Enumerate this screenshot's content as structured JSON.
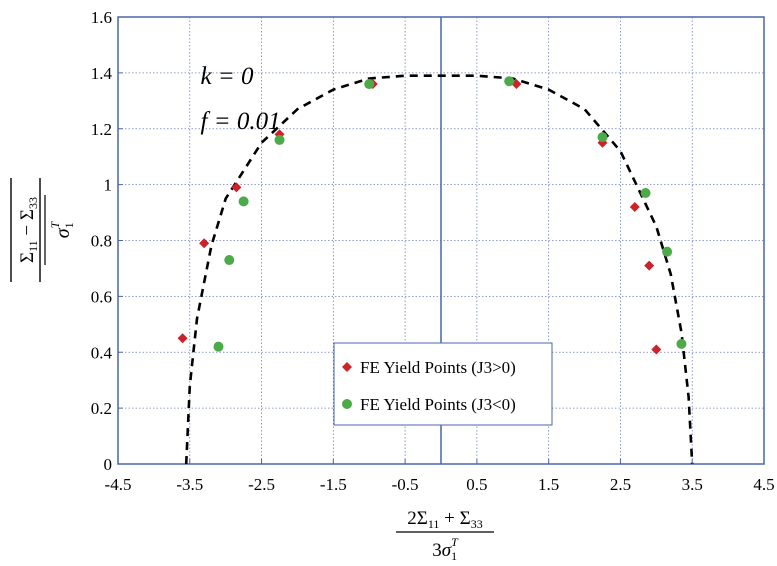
{
  "chart_data": {
    "type": "scatter",
    "x_ticks": [
      "-4.5",
      "-3.5",
      "-2.5",
      "-1.5",
      "-0.5",
      "0.5",
      "1.5",
      "2.5",
      "3.5",
      "4.5"
    ],
    "y_ticks": [
      "0",
      "0.2",
      "0.4",
      "0.6",
      "0.8",
      "1",
      "1.2",
      "1.4",
      "1.6"
    ],
    "xlim": [
      -4.5,
      4.5
    ],
    "ylim": [
      0,
      1.6
    ],
    "grid": true,
    "legend_position": "bottom-center",
    "annotations": [
      {
        "text": "k = 0",
        "x": -3.35,
        "y": 1.36
      },
      {
        "text": "f = 0.01",
        "x": -3.35,
        "y": 1.2
      }
    ],
    "series": [
      {
        "name": "FE Yield Points (J3>0)",
        "marker": "diamond",
        "color": "#cc2229",
        "points": [
          {
            "x": -3.6,
            "y": 0.45
          },
          {
            "x": -3.3,
            "y": 0.79
          },
          {
            "x": -2.85,
            "y": 0.99
          },
          {
            "x": -2.25,
            "y": 1.18
          },
          {
            "x": -0.95,
            "y": 1.36
          },
          {
            "x": 1.05,
            "y": 1.36
          },
          {
            "x": 2.25,
            "y": 1.15
          },
          {
            "x": 2.7,
            "y": 0.92
          },
          {
            "x": 2.9,
            "y": 0.71
          },
          {
            "x": 3.0,
            "y": 0.41
          }
        ]
      },
      {
        "name": "FE Yield Points (J3<0)",
        "marker": "circle",
        "color": "#4caa48",
        "points": [
          {
            "x": -3.1,
            "y": 0.42
          },
          {
            "x": -2.95,
            "y": 0.73
          },
          {
            "x": -2.75,
            "y": 0.94
          },
          {
            "x": -2.25,
            "y": 1.16
          },
          {
            "x": -1.0,
            "y": 1.36
          },
          {
            "x": 0.95,
            "y": 1.37
          },
          {
            "x": 2.25,
            "y": 1.17
          },
          {
            "x": 2.85,
            "y": 0.97
          },
          {
            "x": 3.15,
            "y": 0.76
          },
          {
            "x": 3.35,
            "y": 0.43
          }
        ]
      },
      {
        "type": "line",
        "style": "dashed",
        "color": "#000000",
        "x": [
          -3.55,
          -3.5,
          -3.4,
          -3.2,
          -3.0,
          -2.5,
          -2.0,
          -1.5,
          -1.0,
          -0.5,
          0.0,
          0.5,
          1.0,
          1.5,
          2.0,
          2.5,
          3.0,
          3.2,
          3.35,
          3.45,
          3.5
        ],
        "y": [
          0.0,
          0.28,
          0.52,
          0.78,
          0.95,
          1.15,
          1.27,
          1.34,
          1.38,
          1.39,
          1.39,
          1.39,
          1.38,
          1.34,
          1.27,
          1.12,
          0.85,
          0.68,
          0.47,
          0.24,
          0.0
        ]
      }
    ],
    "colors": {
      "axis_frame": "#4a66a8",
      "grid": "#6f7fc0",
      "zero_line": "#4a66a8"
    }
  }
}
